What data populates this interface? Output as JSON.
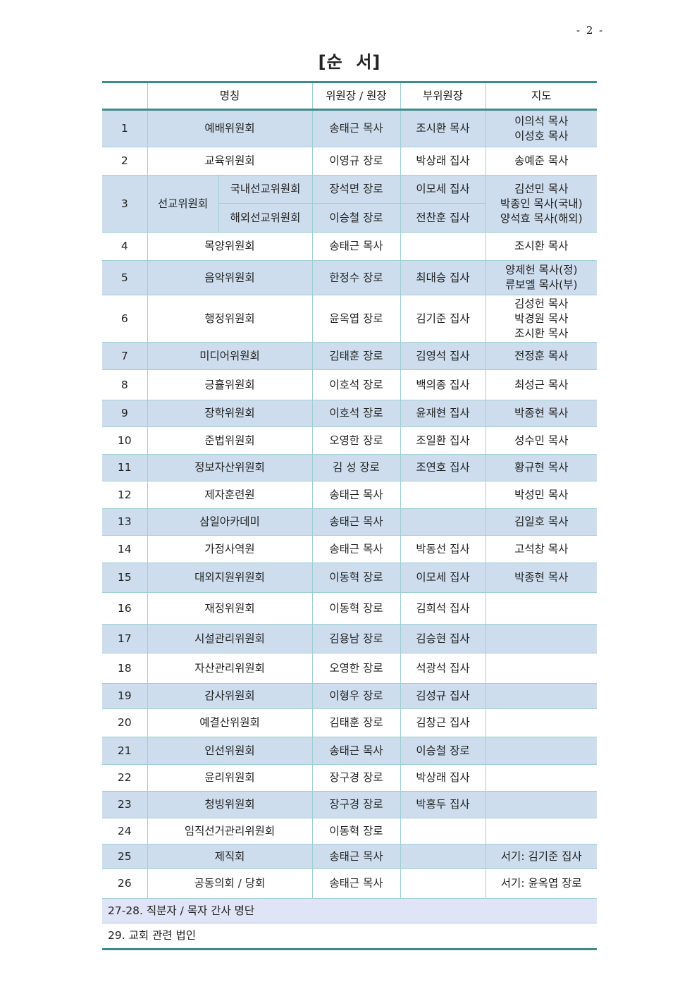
{
  "page_number": "- 2 -",
  "title": "[순  서]",
  "headers": [
    "",
    "명칭",
    "위원장 / 원장",
    "부위원장",
    "지도"
  ],
  "rows": [
    {
      "no": "1",
      "name": "예배위원회",
      "chair": "송태근 목사",
      "vice": "조시환 목사",
      "advisor": [
        "이의석 목사",
        "이성호 목사"
      ]
    },
    {
      "no": "2",
      "name": "교육위원회",
      "chair": "이영규 장로",
      "vice": "박상래 집사",
      "advisor": [
        "송예준 목사"
      ]
    },
    {
      "no": "3",
      "name": "선교위원회",
      "sub": [
        {
          "name": "국내선교위원회",
          "chair": "장석면 장로",
          "vice": "이모세 집사"
        },
        {
          "name": "해외선교위원회",
          "chair": "이승철 장로",
          "vice": "전찬훈 집사"
        }
      ],
      "advisor": [
        "김선민 목사",
        "박종인 목사(국내)",
        "양석효 목사(해외)"
      ]
    },
    {
      "no": "4",
      "name": "목양위원회",
      "chair": "송태근 목사",
      "vice": "",
      "advisor": [
        "조시환 목사"
      ]
    },
    {
      "no": "5",
      "name": "음악위원회",
      "chair": "한정수 장로",
      "vice": "최대승 집사",
      "advisor": [
        "양제헌 목사(정)",
        "류보엘 목사(부)"
      ]
    },
    {
      "no": "6",
      "name": "행정위원회",
      "chair": "윤옥엽 장로",
      "vice": "김기준 집사",
      "advisor": [
        "김성헌 목사",
        "박경원 목사",
        "조시환 목사"
      ]
    },
    {
      "no": "7",
      "name": "미디어위원회",
      "chair": "김태훈 장로",
      "vice": "김영석 집사",
      "advisor": [
        "전정훈 목사"
      ]
    },
    {
      "no": "8",
      "name": "긍휼위원회",
      "chair": "이호석 장로",
      "vice": "백의종 집사",
      "advisor": [
        "최성근 목사"
      ]
    },
    {
      "no": "9",
      "name": "장학위원회",
      "chair": "이호석 장로",
      "vice": "윤재현 집사",
      "advisor": [
        "박종현 목사"
      ]
    },
    {
      "no": "10",
      "name": "준법위원회",
      "chair": "오영한 장로",
      "vice": "조일환 집사",
      "advisor": [
        "성수민 목사"
      ]
    },
    {
      "no": "11",
      "name": "정보자산위원회",
      "chair": "김 성 장로",
      "vice": "조연호 집사",
      "advisor": [
        "황규현 목사"
      ]
    },
    {
      "no": "12",
      "name": "제자훈련원",
      "chair": "송태근 목사",
      "vice": "",
      "advisor": [
        "박성민 목사"
      ]
    },
    {
      "no": "13",
      "name": "삼일아카데미",
      "chair": "송태근 목사",
      "vice": "",
      "advisor": [
        "김일호 목사"
      ]
    },
    {
      "no": "14",
      "name": "가정사역원",
      "chair": "송태근 목사",
      "vice": "박동선 집사",
      "advisor": [
        "고석창 목사"
      ]
    },
    {
      "no": "15",
      "name": "대외지원위원회",
      "chair": "이동혁 장로",
      "vice": "이모세 집사",
      "advisor": [
        "박종현 목사"
      ]
    },
    {
      "no": "16",
      "name": "재정위원회",
      "chair": "이동혁 장로",
      "vice": "김희석 집사",
      "advisor": []
    },
    {
      "no": "17",
      "name": "시설관리위원회",
      "chair": "김용남 장로",
      "vice": "김승현 집사",
      "advisor": []
    },
    {
      "no": "18",
      "name": "자산관리위원회",
      "chair": "오영한 장로",
      "vice": "석광석 집사",
      "advisor": []
    },
    {
      "no": "19",
      "name": "감사위원회",
      "chair": "이형우 장로",
      "vice": "김성규 집사",
      "advisor": []
    },
    {
      "no": "20",
      "name": "예결산위원회",
      "chair": "김태훈 장로",
      "vice": "김창근 집사",
      "advisor": []
    },
    {
      "no": "21",
      "name": "인선위원회",
      "chair": "송태근 목사",
      "vice": "이승철 장로",
      "advisor": []
    },
    {
      "no": "22",
      "name": "윤리위원회",
      "chair": "장구경 장로",
      "vice": "박상래 집사",
      "advisor": []
    },
    {
      "no": "23",
      "name": "청빙위원회",
      "chair": "장구경 장로",
      "vice": "박홍두 집사",
      "advisor": []
    },
    {
      "no": "24",
      "name": "임직선거관리위원회",
      "chair": "이동혁 장로",
      "vice": "",
      "advisor": []
    },
    {
      "no": "25",
      "name": "제직회",
      "chair": "송태근 목사",
      "vice": "",
      "advisor": [
        "서기: 김기준 집사"
      ]
    },
    {
      "no": "26",
      "name": "공동의회 / 당회",
      "chair": "송태근 목사",
      "vice": "",
      "advisor": [
        "서기: 윤옥엽 장로"
      ]
    }
  ],
  "footer_rows": [
    "27-28. 직분자 / 목자 간사 명단",
    "29. 교회 관련 법인"
  ],
  "colors": {
    "shade": "#cedded",
    "footer_shade": "#dfe5f6",
    "rule": "#3d8b8b",
    "grid": "#9fcfd3"
  }
}
